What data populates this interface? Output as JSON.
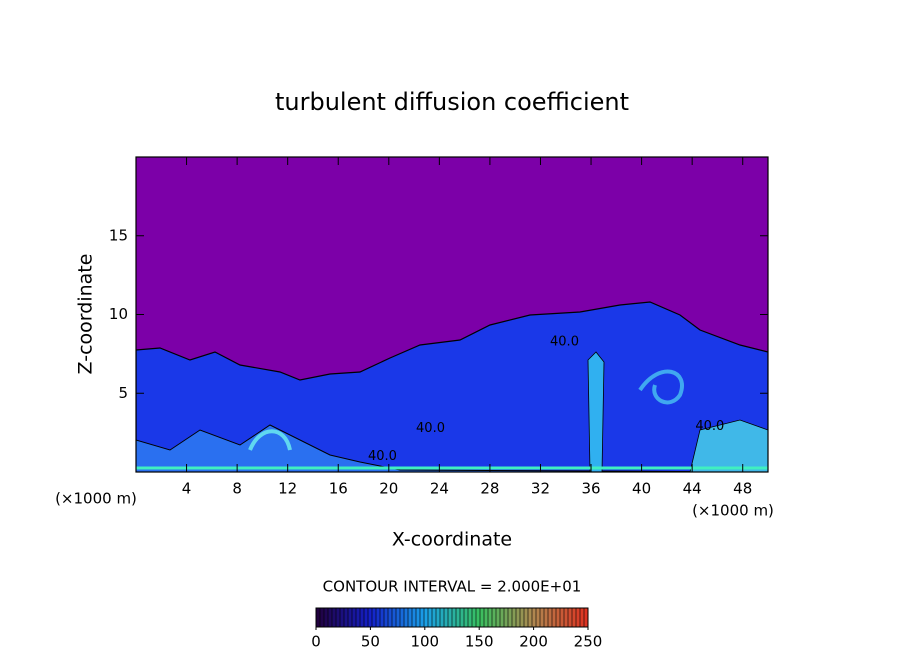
{
  "chart_data": {
    "type": "contour",
    "title": "turbulent diffusion coefficient",
    "x_label": "X-coordinate",
    "y_label": "Z-coordinate",
    "x_unit": "(×1000 m)",
    "x_unit_right": "(×1000 m)",
    "contour_interval": "CONTOUR INTERVAL = 2.000E+01",
    "xlim": [
      0,
      50
    ],
    "xticks": [
      4,
      8,
      12,
      16,
      20,
      24,
      28,
      32,
      36,
      40,
      44,
      48
    ],
    "ylim": [
      0,
      20
    ],
    "yticks": [
      5,
      10,
      15
    ],
    "background_color": "#7c00a8",
    "contour_labels": [
      {
        "value": 40,
        "label": "40.0",
        "x": 33.9,
        "z": 8.25
      },
      {
        "value": 40,
        "label": "40.0",
        "x": 23.3,
        "z": 2.75
      },
      {
        "value": 40,
        "label": "40.0",
        "x": 19.5,
        "z": 1.0
      },
      {
        "value": 40,
        "label": "40.0",
        "x": 45.4,
        "z": 2.9
      }
    ],
    "colorbar": {
      "lim": [
        0,
        250
      ],
      "ticks": [
        0,
        50,
        100,
        150,
        200,
        250
      ],
      "colormap": [
        "#22003a",
        "#1420c8",
        "#1aa0e8",
        "#38c060",
        "#b08850",
        "#e03020"
      ]
    }
  }
}
